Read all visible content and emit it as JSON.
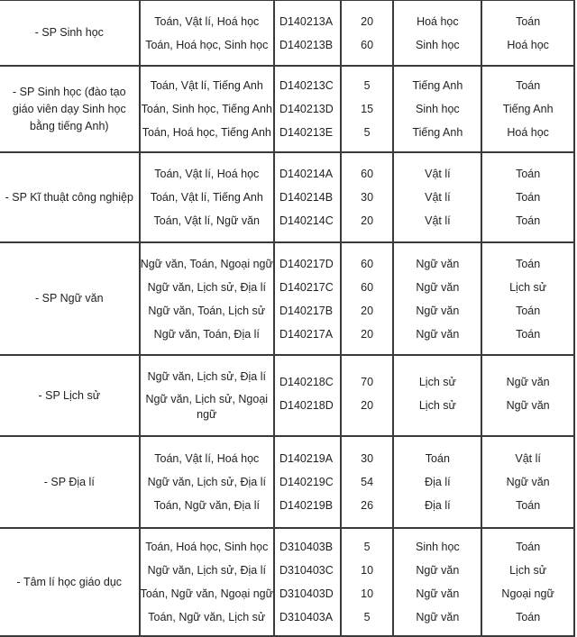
{
  "groups": [
    {
      "name": "- SP Sinh học",
      "rows": [
        {
          "combo": "Toán, Vật lí, Hoá học",
          "code": "D140213A",
          "quota": "20",
          "subject1": "Hoá học",
          "subject2": "Toán"
        },
        {
          "combo": "Toán, Hoá học, Sinh học",
          "code": "D140213B",
          "quota": "60",
          "subject1": "Sinh học",
          "subject2": "Hoá học"
        }
      ]
    },
    {
      "name": "- SP Sinh học (đào tạo giáo viên dạy Sinh học bằng tiếng Anh)",
      "rows": [
        {
          "combo": "Toán, Vật lí, Tiếng Anh",
          "code": "D140213C",
          "quota": "5",
          "subject1": "Tiếng Anh",
          "subject2": "Toán"
        },
        {
          "combo": "Toán, Sinh học, Tiếng Anh",
          "code": "D140213D",
          "quota": "15",
          "subject1": "Sinh học",
          "subject2": "Tiếng Anh"
        },
        {
          "combo": "Toán, Hoá học, Tiếng Anh",
          "code": "D140213E",
          "quota": "5",
          "subject1": "Tiếng Anh",
          "subject2": "Hoá học"
        }
      ]
    },
    {
      "name": "- SP Kĩ thuật công nghiệp",
      "rows": [
        {
          "combo": "Toán, Vật lí, Hoá học",
          "code": "D140214A",
          "quota": "60",
          "subject1": "Vật lí",
          "subject2": "Toán"
        },
        {
          "combo": "Toán, Vật lí, Tiếng Anh",
          "code": "D140214B",
          "quota": "30",
          "subject1": "Vật lí",
          "subject2": "Toán"
        },
        {
          "combo": "Toán, Vật lí, Ngữ văn",
          "code": "D140214C",
          "quota": "20",
          "subject1": "Vật lí",
          "subject2": "Toán"
        }
      ]
    },
    {
      "name": "- SP Ngữ văn",
      "rows": [
        {
          "combo": "Ngữ văn, Toán, Ngoại ngữ",
          "code": "D140217D",
          "quota": "60",
          "subject1": "Ngữ văn",
          "subject2": "Toán"
        },
        {
          "combo": "Ngữ văn, Lịch sử, Địa lí",
          "code": "D140217C",
          "quota": "60",
          "subject1": "Ngữ văn",
          "subject2": "Lịch sử"
        },
        {
          "combo": "Ngữ văn, Toán, Lịch sử",
          "code": "D140217B",
          "quota": "20",
          "subject1": "Ngữ văn",
          "subject2": "Toán"
        },
        {
          "combo": "Ngữ văn, Toán, Địa lí",
          "code": "D140217A",
          "quota": "20",
          "subject1": "Ngữ văn",
          "subject2": "Toán"
        }
      ]
    },
    {
      "name": "- SP Lịch sử",
      "rows": [
        {
          "combo": "Ngữ văn, Lịch sử, Địa lí",
          "code": "D140218C",
          "quota": "70",
          "subject1": "Lịch sử",
          "subject2": "Ngữ văn"
        },
        {
          "combo": "Ngữ văn, Lịch sử, Ngoại ngữ",
          "code": "D140218D",
          "quota": "20",
          "subject1": "Lịch sử",
          "subject2": "Ngữ văn"
        }
      ]
    },
    {
      "name": "- SP Địa lí",
      "rows": [
        {
          "combo": "Toán, Vật lí, Hoá học",
          "code": "D140219A",
          "quota": "30",
          "subject1": "Toán",
          "subject2": "Vật lí"
        },
        {
          "combo": "Ngữ văn, Lịch sử, Địa lí",
          "code": "D140219C",
          "quota": "54",
          "subject1": "Địa lí",
          "subject2": "Ngữ văn"
        },
        {
          "combo": "Toán, Ngữ văn, Địa lí",
          "code": "D140219B",
          "quota": "26",
          "subject1": "Địa lí",
          "subject2": "Toán"
        }
      ]
    },
    {
      "name": "- Tâm lí học giáo dục",
      "rows": [
        {
          "combo": "Toán, Hoá học, Sinh học",
          "code": "D310403B",
          "quota": "5",
          "subject1": "Sinh học",
          "subject2": "Toán"
        },
        {
          "combo": "Ngữ văn, Lịch sử, Địa lí",
          "code": "D310403C",
          "quota": "10",
          "subject1": "Ngữ văn",
          "subject2": "Lịch sử"
        },
        {
          "combo": "Toán, Ngữ văn, Ngoại ngữ",
          "code": "D310403D",
          "quota": "10",
          "subject1": "Ngữ văn",
          "subject2": "Ngoại ngữ"
        },
        {
          "combo": "Toán, Ngữ văn, Lịch sử",
          "code": "D310403A",
          "quota": "5",
          "subject1": "Ngữ văn",
          "subject2": "Toán"
        }
      ]
    }
  ]
}
